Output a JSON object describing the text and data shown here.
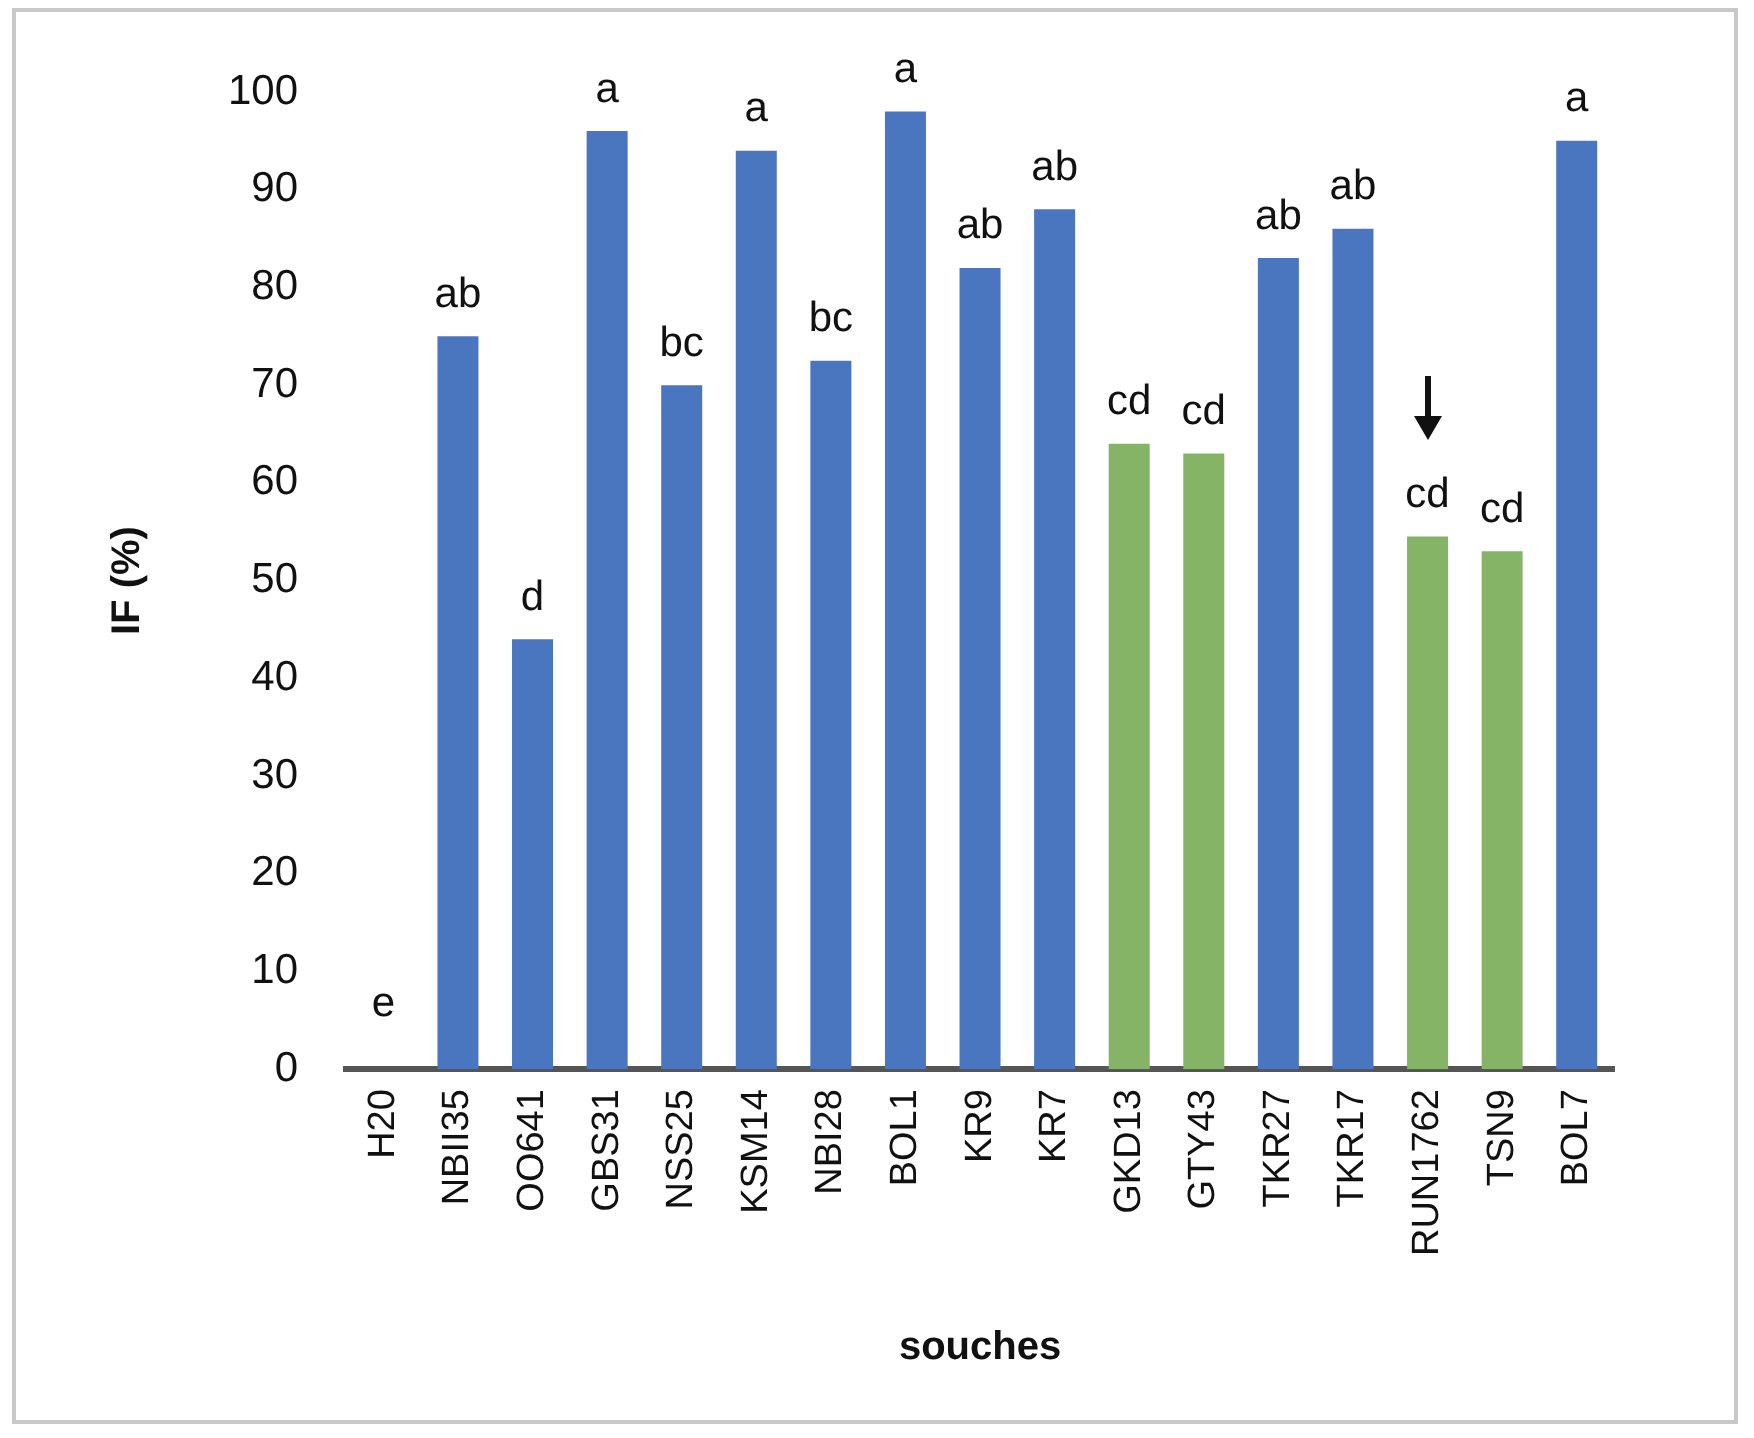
{
  "chart_data": {
    "type": "bar",
    "xlabel": "souches",
    "ylabel": "IF (%)",
    "categories": [
      "H20",
      "NBII35",
      "OO641",
      "GBS31",
      "NSS25",
      "KSM14",
      "NBI28",
      "BOL1",
      "KR9",
      "KR7",
      "GKD13",
      "GTY43",
      "TKR27",
      "TKR17",
      "RUN1762",
      "TSN9",
      "BOL7"
    ],
    "values": [
      0,
      75,
      44,
      96,
      70,
      94,
      72.5,
      98,
      82,
      88,
      64,
      63,
      83,
      86,
      54.5,
      53,
      95
    ],
    "colors": [
      "#4a76c0",
      "#4a76c0",
      "#4a76c0",
      "#4a76c0",
      "#4a76c0",
      "#4a76c0",
      "#4a76c0",
      "#4a76c0",
      "#4a76c0",
      "#4a76c0",
      "#86b467",
      "#86b467",
      "#4a76c0",
      "#4a76c0",
      "#86b467",
      "#86b467",
      "#4a76c0"
    ],
    "ylim": [
      0,
      100
    ],
    "yticks": [
      0,
      10,
      20,
      30,
      40,
      50,
      60,
      70,
      80,
      90,
      100
    ],
    "grid": false,
    "legend": false,
    "annotations": [
      {
        "text": "e",
        "x": "H20",
        "y": 0
      },
      {
        "text": "ab",
        "x": "NBII35",
        "y": 75
      },
      {
        "text": "d",
        "x": "OO641",
        "y": 44
      },
      {
        "text": "a",
        "x": "GBS31",
        "y": 96
      },
      {
        "text": "bc",
        "x": "NSS25",
        "y": 70
      },
      {
        "text": "a",
        "x": "KSM14",
        "y": 94
      },
      {
        "text": "bc",
        "x": "NBI28",
        "y": 72.5
      },
      {
        "text": "a",
        "x": "BOL1",
        "y": 98
      },
      {
        "text": "ab",
        "x": "KR9",
        "y": 82
      },
      {
        "text": "ab",
        "x": "KR7",
        "y": 88
      },
      {
        "text": "cd",
        "x": "GKD13",
        "y": 64
      },
      {
        "text": "cd",
        "x": "GTY43",
        "y": 63
      },
      {
        "text": "ab",
        "x": "TKR27",
        "y": 83
      },
      {
        "text": "ab",
        "x": "TKR17",
        "y": 86
      },
      {
        "text": "cd",
        "x": "RUN1762",
        "y": 54.5
      },
      {
        "text": "cd",
        "x": "TSN9",
        "y": 53
      },
      {
        "text": "a",
        "x": "BOL7",
        "y": 95
      }
    ]
  }
}
